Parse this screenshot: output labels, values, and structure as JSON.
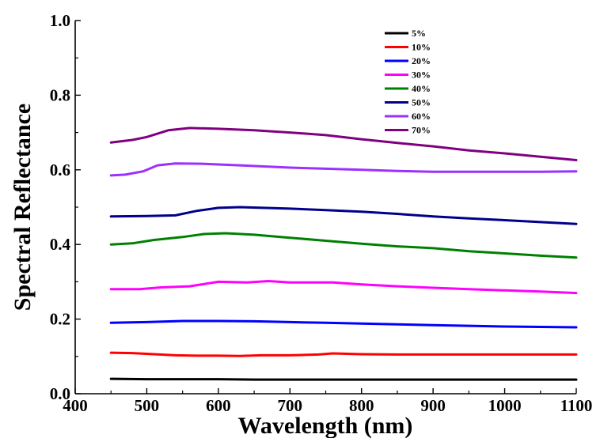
{
  "chart_data": {
    "type": "line",
    "title": "",
    "xlabel": "Wavelength (nm)",
    "ylabel": "Spectral Reflectance",
    "xlim": [
      400,
      1100
    ],
    "ylim": [
      0.0,
      1.0
    ],
    "x_ticks": [
      "400",
      "500",
      "600",
      "700",
      "800",
      "900",
      "1000",
      "1100"
    ],
    "y_ticks": [
      "0.0",
      "0.2",
      "0.4",
      "0.6",
      "0.8",
      "1.0"
    ],
    "grid": false,
    "legend_position": "top-center",
    "series": [
      {
        "name": "5%",
        "color": "#000000",
        "points": [
          [
            450,
            0.04
          ],
          [
            500,
            0.039
          ],
          [
            550,
            0.039
          ],
          [
            600,
            0.039
          ],
          [
            650,
            0.038
          ],
          [
            700,
            0.038
          ],
          [
            750,
            0.038
          ],
          [
            800,
            0.038
          ],
          [
            850,
            0.038
          ],
          [
            900,
            0.038
          ],
          [
            950,
            0.038
          ],
          [
            1000,
            0.038
          ],
          [
            1050,
            0.038
          ],
          [
            1100,
            0.038
          ]
        ]
      },
      {
        "name": "10%",
        "color": "#ff0000",
        "points": [
          [
            450,
            0.11
          ],
          [
            480,
            0.109
          ],
          [
            510,
            0.106
          ],
          [
            540,
            0.103
          ],
          [
            570,
            0.102
          ],
          [
            600,
            0.102
          ],
          [
            630,
            0.101
          ],
          [
            660,
            0.103
          ],
          [
            700,
            0.103
          ],
          [
            740,
            0.105
          ],
          [
            760,
            0.108
          ],
          [
            800,
            0.106
          ],
          [
            850,
            0.105
          ],
          [
            900,
            0.105
          ],
          [
            950,
            0.105
          ],
          [
            1000,
            0.105
          ],
          [
            1050,
            0.105
          ],
          [
            1100,
            0.105
          ]
        ]
      },
      {
        "name": "20%",
        "color": "#0000ff",
        "points": [
          [
            450,
            0.19
          ],
          [
            500,
            0.192
          ],
          [
            550,
            0.195
          ],
          [
            600,
            0.195
          ],
          [
            650,
            0.194
          ],
          [
            700,
            0.192
          ],
          [
            750,
            0.19
          ],
          [
            800,
            0.188
          ],
          [
            850,
            0.186
          ],
          [
            900,
            0.184
          ],
          [
            950,
            0.182
          ],
          [
            1000,
            0.18
          ],
          [
            1050,
            0.179
          ],
          [
            1100,
            0.178
          ]
        ]
      },
      {
        "name": "30%",
        "color": "#ff00ff",
        "points": [
          [
            450,
            0.28
          ],
          [
            490,
            0.28
          ],
          [
            520,
            0.285
          ],
          [
            560,
            0.288
          ],
          [
            600,
            0.3
          ],
          [
            640,
            0.298
          ],
          [
            670,
            0.302
          ],
          [
            700,
            0.298
          ],
          [
            760,
            0.298
          ],
          [
            800,
            0.293
          ],
          [
            850,
            0.288
          ],
          [
            900,
            0.284
          ],
          [
            950,
            0.28
          ],
          [
            1000,
            0.277
          ],
          [
            1050,
            0.274
          ],
          [
            1100,
            0.27
          ]
        ]
      },
      {
        "name": "40%",
        "color": "#008000",
        "points": [
          [
            450,
            0.4
          ],
          [
            480,
            0.403
          ],
          [
            510,
            0.412
          ],
          [
            550,
            0.42
          ],
          [
            580,
            0.428
          ],
          [
            610,
            0.43
          ],
          [
            650,
            0.426
          ],
          [
            700,
            0.418
          ],
          [
            750,
            0.41
          ],
          [
            800,
            0.402
          ],
          [
            850,
            0.395
          ],
          [
            900,
            0.39
          ],
          [
            950,
            0.382
          ],
          [
            1000,
            0.376
          ],
          [
            1050,
            0.37
          ],
          [
            1100,
            0.365
          ]
        ]
      },
      {
        "name": "50%",
        "color": "#00008b",
        "points": [
          [
            450,
            0.475
          ],
          [
            500,
            0.476
          ],
          [
            540,
            0.478
          ],
          [
            570,
            0.49
          ],
          [
            600,
            0.498
          ],
          [
            630,
            0.5
          ],
          [
            700,
            0.496
          ],
          [
            750,
            0.492
          ],
          [
            800,
            0.488
          ],
          [
            850,
            0.482
          ],
          [
            900,
            0.475
          ],
          [
            950,
            0.47
          ],
          [
            1000,
            0.465
          ],
          [
            1050,
            0.46
          ],
          [
            1100,
            0.455
          ]
        ]
      },
      {
        "name": "60%",
        "color": "#9b30ff",
        "points": [
          [
            450,
            0.585
          ],
          [
            470,
            0.587
          ],
          [
            495,
            0.596
          ],
          [
            515,
            0.612
          ],
          [
            540,
            0.617
          ],
          [
            580,
            0.616
          ],
          [
            630,
            0.612
          ],
          [
            700,
            0.606
          ],
          [
            750,
            0.603
          ],
          [
            800,
            0.6
          ],
          [
            850,
            0.597
          ],
          [
            900,
            0.595
          ],
          [
            950,
            0.595
          ],
          [
            1000,
            0.595
          ],
          [
            1050,
            0.595
          ],
          [
            1100,
            0.596
          ]
        ]
      },
      {
        "name": "70%",
        "color": "#800080",
        "points": [
          [
            450,
            0.673
          ],
          [
            480,
            0.68
          ],
          [
            500,
            0.688
          ],
          [
            530,
            0.706
          ],
          [
            560,
            0.712
          ],
          [
            600,
            0.71
          ],
          [
            650,
            0.706
          ],
          [
            700,
            0.7
          ],
          [
            750,
            0.693
          ],
          [
            800,
            0.682
          ],
          [
            850,
            0.672
          ],
          [
            900,
            0.663
          ],
          [
            950,
            0.652
          ],
          [
            1000,
            0.644
          ],
          [
            1050,
            0.635
          ],
          [
            1100,
            0.626
          ]
        ]
      }
    ]
  }
}
